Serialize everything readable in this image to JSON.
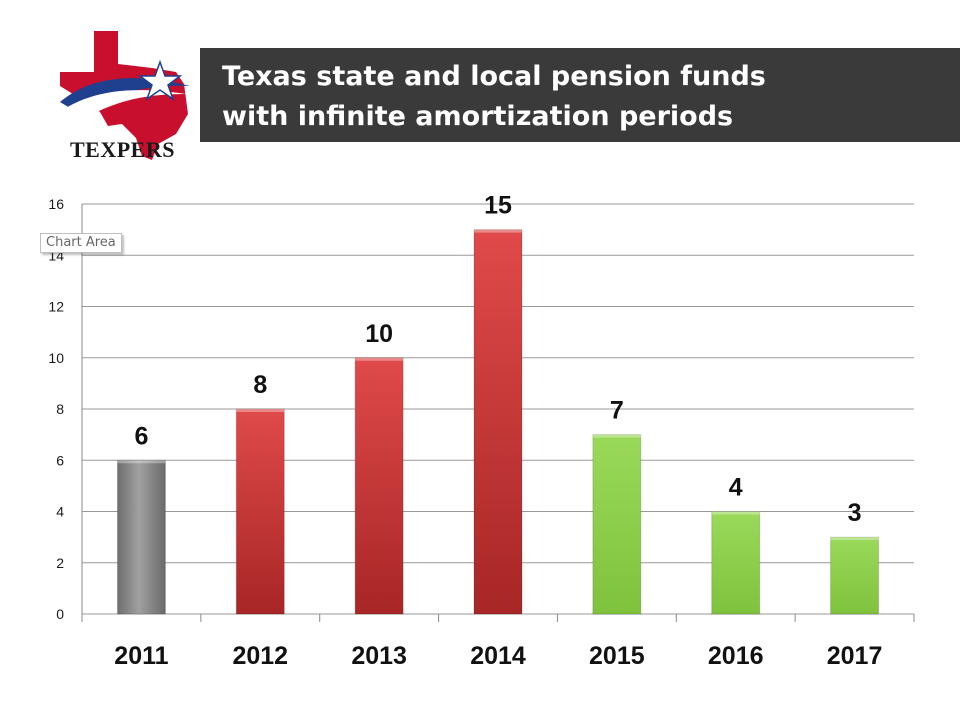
{
  "header": {
    "logo_text": "TEXPERS",
    "title_line1": "Texas state and local pension funds",
    "title_line2": "with infinite amortization periods"
  },
  "tooltip": {
    "label": "Chart Area"
  },
  "colors": {
    "gray": "#8a8a8a",
    "red": "#c83232",
    "green": "#92d050",
    "title_bg": "#3a3a3a"
  },
  "chart_data": {
    "type": "bar",
    "categories": [
      "2011",
      "2012",
      "2013",
      "2014",
      "2015",
      "2016",
      "2017"
    ],
    "values": [
      6,
      8,
      10,
      15,
      7,
      4,
      3
    ],
    "bar_colors": [
      "gray",
      "red",
      "red",
      "red",
      "green",
      "green",
      "green"
    ],
    "title": "",
    "xlabel": "",
    "ylabel": "",
    "ylim": [
      0,
      16
    ],
    "yticks": [
      0,
      2,
      4,
      6,
      8,
      10,
      12,
      14,
      16
    ],
    "grid": true,
    "data_labels": true,
    "legend": "none"
  }
}
